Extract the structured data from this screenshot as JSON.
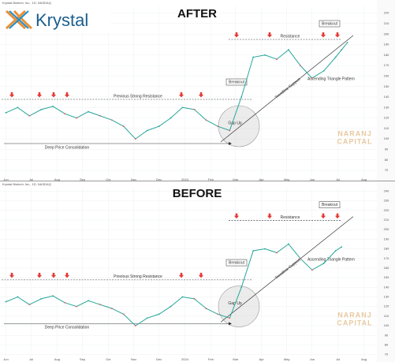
{
  "brand": "Krystal",
  "watermark": {
    "line1": "NARANJ",
    "line2": "CAPITAL"
  },
  "chart_data": [
    {
      "type": "line",
      "title": "AFTER",
      "header": "Krystal Biotech, Inc., 1D, NASDAQ",
      "x": [
        0,
        2,
        4,
        6,
        8,
        10,
        12,
        14,
        16,
        18,
        20,
        22,
        24,
        26,
        28,
        30,
        32,
        34,
        36,
        38,
        40,
        42,
        44,
        46,
        48,
        50,
        52,
        54,
        56,
        57,
        58
      ],
      "values": [
        125,
        130,
        122,
        128,
        131,
        124,
        120,
        126,
        122,
        118,
        112,
        100,
        108,
        112,
        120,
        130,
        128,
        118,
        112,
        108,
        140,
        178,
        180,
        176,
        185,
        170,
        158,
        165,
        178,
        185,
        192
      ],
      "color": "#26a69a",
      "xlim": [
        -1,
        63
      ],
      "xticks": [
        {
          "value": 0,
          "label": "Jun"
        },
        {
          "value": 4.3,
          "label": "Jul"
        },
        {
          "value": 8.7,
          "label": "Aug"
        },
        {
          "value": 13,
          "label": "Sep"
        },
        {
          "value": 17.4,
          "label": "Oct"
        },
        {
          "value": 21.7,
          "label": "Nov"
        },
        {
          "value": 26,
          "label": "Dec"
        },
        {
          "value": 30.4,
          "label": "2024"
        },
        {
          "value": 34.8,
          "label": "Feb"
        },
        {
          "value": 39,
          "label": "Mar"
        },
        {
          "value": 43.4,
          "label": "Apr"
        },
        {
          "value": 47.7,
          "label": "May"
        },
        {
          "value": 52,
          "label": "Jun"
        },
        {
          "value": 56.4,
          "label": "Jul"
        },
        {
          "value": 60.8,
          "label": "Aug"
        }
      ],
      "ylim": [
        64,
        225
      ],
      "yticks": [
        70,
        80,
        90,
        100,
        110,
        120,
        130,
        140,
        150,
        160,
        170,
        180,
        190,
        200,
        210,
        220
      ],
      "annotations": {
        "resistance": "Resistance",
        "breakout": "Breakout",
        "previous_resistance": "Previous Strong Resistance",
        "gap": "Gap Up",
        "consolidation": "Deep Price Consolidation",
        "trendline": "Trendline Support",
        "pattern": "Ascending Triangle Pattern"
      }
    },
    {
      "type": "line",
      "title": "BEFORE",
      "header": "Krystal Biotech, Inc., 1D, NASDAQ",
      "x": [
        0,
        2,
        4,
        6,
        8,
        10,
        12,
        14,
        16,
        18,
        20,
        22,
        24,
        26,
        28,
        30,
        32,
        34,
        36,
        38,
        40,
        42,
        44,
        46,
        48,
        50,
        52,
        54,
        56,
        57
      ],
      "values": [
        125,
        130,
        122,
        128,
        131,
        124,
        120,
        126,
        122,
        118,
        112,
        100,
        108,
        112,
        120,
        130,
        128,
        118,
        112,
        108,
        140,
        178,
        180,
        176,
        185,
        170,
        158,
        165,
        178,
        182
      ],
      "color": "#26a69a",
      "xlim": [
        -1,
        63
      ],
      "xticks": [
        {
          "value": 0,
          "label": "Jun"
        },
        {
          "value": 4.3,
          "label": "Jul"
        },
        {
          "value": 8.7,
          "label": "Aug"
        },
        {
          "value": 13,
          "label": "Sep"
        },
        {
          "value": 17.4,
          "label": "Oct"
        },
        {
          "value": 21.7,
          "label": "Nov"
        },
        {
          "value": 26,
          "label": "Dec"
        },
        {
          "value": 30.4,
          "label": "2024"
        },
        {
          "value": 34.8,
          "label": "Feb"
        },
        {
          "value": 39,
          "label": "Mar"
        },
        {
          "value": 43.4,
          "label": "Apr"
        },
        {
          "value": 47.7,
          "label": "May"
        },
        {
          "value": 52,
          "label": "Jun"
        },
        {
          "value": 56.4,
          "label": "Jul"
        },
        {
          "value": 60.8,
          "label": "Aug"
        }
      ],
      "ylim": [
        68,
        242
      ],
      "yticks": [
        70,
        80,
        90,
        100,
        110,
        120,
        130,
        140,
        150,
        160,
        170,
        180,
        190,
        200,
        210,
        220,
        230,
        240
      ],
      "annotations": {
        "resistance": "Resistance",
        "breakout": "Breakout",
        "previous_resistance": "Previous Strong Resistance",
        "gap": "Gap Up",
        "consolidation": "Deep Price Consolidation",
        "trendline": "Trendline Support",
        "pattern": "Ascending Triangle Pattern"
      }
    }
  ]
}
